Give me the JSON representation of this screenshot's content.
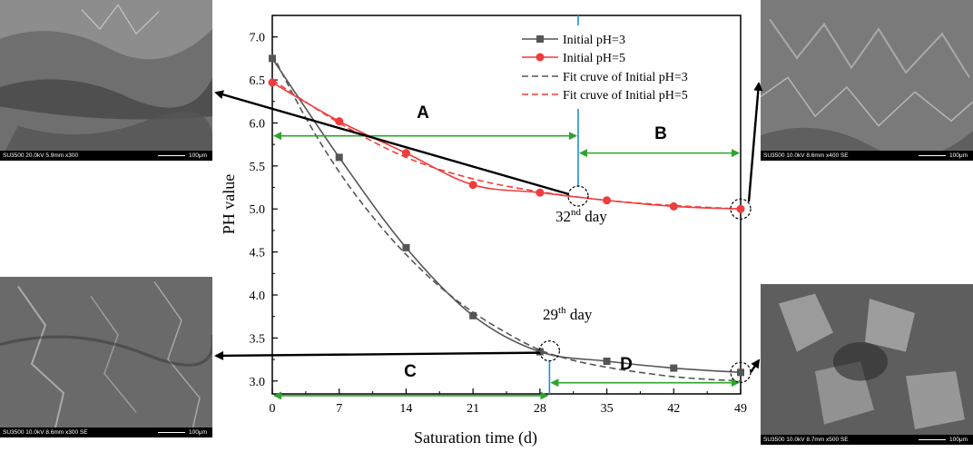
{
  "chart_data": {
    "type": "line",
    "xlabel": "Saturation time (d)",
    "ylabel": "PH value",
    "xlim": [
      0,
      49
    ],
    "ylim": [
      2.85,
      7.25
    ],
    "xticks": [
      0,
      7,
      14,
      21,
      28,
      35,
      42,
      49
    ],
    "yticks": [
      3.0,
      3.5,
      4.0,
      4.5,
      5.0,
      5.5,
      6.0,
      6.5,
      7.0
    ],
    "series": [
      {
        "name": "Initial pH=3",
        "marker": "square",
        "color": "#555555",
        "x": [
          0,
          7,
          14,
          21,
          28,
          35,
          42,
          49
        ],
        "y": [
          6.75,
          5.6,
          4.55,
          3.76,
          3.34,
          3.23,
          3.15,
          3.1
        ]
      },
      {
        "name": "Initial pH=5",
        "marker": "circle",
        "color": "#f03c3c",
        "x": [
          0,
          7,
          14,
          21,
          28,
          35,
          42,
          49
        ],
        "y": [
          6.47,
          6.02,
          5.65,
          5.28,
          5.19,
          5.1,
          5.03,
          5.0
        ]
      },
      {
        "name": "Fit cruve of Initial pH=3",
        "style": "dashed",
        "color": "#555555",
        "x": [
          0,
          3.5,
          7,
          10.5,
          14,
          17.5,
          21,
          24.5,
          28,
          31.5,
          35,
          38.5,
          42,
          45.5,
          49
        ],
        "y": [
          6.8,
          6.06,
          5.43,
          4.91,
          4.47,
          4.1,
          3.8,
          3.56,
          3.36,
          3.24,
          3.16,
          3.1,
          3.05,
          3.02,
          3.0
        ]
      },
      {
        "name": "Fit cruve of Initial pH=5",
        "style": "dashed",
        "color": "#f03c3c",
        "x": [
          0,
          7,
          14,
          21,
          28,
          35,
          42,
          49
        ],
        "y": [
          6.5,
          6.0,
          5.6,
          5.35,
          5.2,
          5.1,
          5.04,
          5.0
        ]
      }
    ],
    "annotations": {
      "A": "A",
      "B": "B",
      "C": "C",
      "D": "D",
      "day32": {
        "pre": "32",
        "sup": "nd",
        "post": " day",
        "x": 32,
        "y": 5.15
      },
      "day29": {
        "pre": "29",
        "sup": "th",
        "post": " day",
        "x": 29,
        "y": 3.35
      },
      "day49_pH5_y": 5.0,
      "day49_pH3_y": 3.1
    }
  },
  "sem_images": {
    "top_left": {
      "caption": "SU3500 20.0kV 5.9mm x300",
      "scale": "100μm"
    },
    "top_right": {
      "caption": "SU3500 10.0kV 8.6mm x400 SE",
      "scale": "100μm"
    },
    "bottom_left": {
      "caption": "SU3500 10.0kV 8.6mm x300 SE",
      "scale": "100μm"
    },
    "bottom_right": {
      "caption": "SU3500 10.0kV 8.7mm x500 SE",
      "scale": "100μm"
    }
  },
  "colors": {
    "arrow_green": "#2ea32e",
    "marker_blue": "#1e90d8",
    "pH3": "#555555",
    "pH5": "#f03c3c"
  }
}
